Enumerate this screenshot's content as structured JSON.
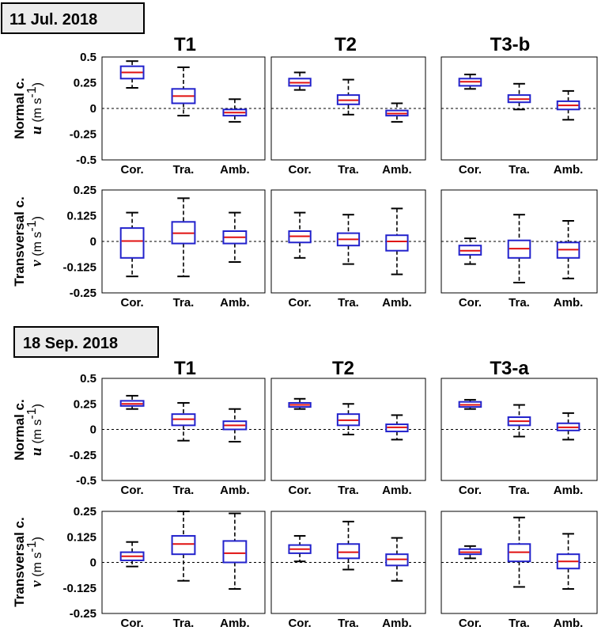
{
  "categories": [
    "Cor.",
    "Tra.",
    "Amb."
  ],
  "colors": {
    "box": "#2222cc",
    "median": "#e01010",
    "whisker": "#000000",
    "date_box": "#ececec"
  },
  "y_labels": {
    "normal": {
      "line1": "Normal c.",
      "var": "u",
      "unit": "(m s",
      "exp": "-1",
      "close": ")"
    },
    "transversal": {
      "line1": "Transversal c.",
      "var": "v",
      "unit": "(m s",
      "exp": "-1",
      "close": ")"
    }
  },
  "axes": {
    "normal": {
      "ylim": [
        -0.5,
        0.5
      ],
      "ticks": [
        "0.5",
        "0.25",
        "0",
        "-0.25",
        "-0.5"
      ]
    },
    "transversal": {
      "ylim": [
        -0.25,
        0.25
      ],
      "ticks": [
        "0.25",
        "0.125",
        "0",
        "-0.125",
        "-0.25"
      ]
    }
  },
  "chart_data": [
    {
      "type": "boxplot",
      "date": "11 Jul. 2018",
      "component": "normal",
      "panels": [
        {
          "title": "T1",
          "boxes": [
            {
              "cat": "Cor.",
              "min": 0.2,
              "q1": 0.29,
              "median": 0.35,
              "q3": 0.41,
              "max": 0.46
            },
            {
              "cat": "Tra.",
              "min": -0.07,
              "q1": 0.05,
              "median": 0.12,
              "q3": 0.19,
              "max": 0.4
            },
            {
              "cat": "Amb.",
              "min": -0.13,
              "q1": -0.07,
              "median": -0.04,
              "q3": -0.01,
              "max": 0.09
            }
          ]
        },
        {
          "title": "T2",
          "boxes": [
            {
              "cat": "Cor.",
              "min": 0.18,
              "q1": 0.22,
              "median": 0.25,
              "q3": 0.29,
              "max": 0.35
            },
            {
              "cat": "Tra.",
              "min": -0.06,
              "q1": 0.04,
              "median": 0.08,
              "q3": 0.13,
              "max": 0.28
            },
            {
              "cat": "Amb.",
              "min": -0.13,
              "q1": -0.07,
              "median": -0.05,
              "q3": -0.02,
              "max": 0.05
            }
          ]
        },
        {
          "title": "T3-b",
          "boxes": [
            {
              "cat": "Cor.",
              "min": 0.19,
              "q1": 0.22,
              "median": 0.26,
              "q3": 0.29,
              "max": 0.33
            },
            {
              "cat": "Tra.",
              "min": -0.01,
              "q1": 0.06,
              "median": 0.09,
              "q3": 0.13,
              "max": 0.24
            },
            {
              "cat": "Amb.",
              "min": -0.11,
              "q1": -0.01,
              "median": 0.03,
              "q3": 0.07,
              "max": 0.17
            }
          ]
        }
      ]
    },
    {
      "type": "boxplot",
      "date": "11 Jul. 2018",
      "component": "transversal",
      "panels": [
        {
          "title": "T1",
          "boxes": [
            {
              "cat": "Cor.",
              "min": -0.17,
              "q1": -0.08,
              "median": 0.002,
              "q3": 0.065,
              "max": 0.14
            },
            {
              "cat": "Tra.",
              "min": -0.17,
              "q1": -0.01,
              "median": 0.04,
              "q3": 0.095,
              "max": 0.21
            },
            {
              "cat": "Amb.",
              "min": -0.1,
              "q1": -0.01,
              "median": 0.02,
              "q3": 0.05,
              "max": 0.14
            }
          ]
        },
        {
          "title": "T2",
          "boxes": [
            {
              "cat": "Cor.",
              "min": -0.08,
              "q1": -0.005,
              "median": 0.025,
              "q3": 0.05,
              "max": 0.14
            },
            {
              "cat": "Tra.",
              "min": -0.11,
              "q1": -0.02,
              "median": 0.01,
              "q3": 0.04,
              "max": 0.13
            },
            {
              "cat": "Amb.",
              "min": -0.16,
              "q1": -0.045,
              "median": 0.0,
              "q3": 0.03,
              "max": 0.16
            }
          ]
        },
        {
          "title": "T3-b",
          "boxes": [
            {
              "cat": "Cor.",
              "min": -0.11,
              "q1": -0.065,
              "median": -0.045,
              "q3": -0.02,
              "max": 0.015
            },
            {
              "cat": "Tra.",
              "min": -0.2,
              "q1": -0.08,
              "median": -0.035,
              "q3": 0.005,
              "max": 0.13
            },
            {
              "cat": "Amb.",
              "min": -0.18,
              "q1": -0.08,
              "median": -0.04,
              "q3": -0.005,
              "max": 0.1
            }
          ]
        }
      ]
    },
    {
      "type": "boxplot",
      "date": "18 Sep. 2018",
      "component": "normal",
      "panels": [
        {
          "title": "T1",
          "boxes": [
            {
              "cat": "Cor.",
              "min": 0.2,
              "q1": 0.23,
              "median": 0.25,
              "q3": 0.28,
              "max": 0.33
            },
            {
              "cat": "Tra.",
              "min": -0.11,
              "q1": 0.04,
              "median": 0.1,
              "q3": 0.15,
              "max": 0.26
            },
            {
              "cat": "Amb.",
              "min": -0.12,
              "q1": 0.0,
              "median": 0.04,
              "q3": 0.08,
              "max": 0.2
            }
          ]
        },
        {
          "title": "T2",
          "boxes": [
            {
              "cat": "Cor.",
              "min": 0.2,
              "q1": 0.22,
              "median": 0.24,
              "q3": 0.26,
              "max": 0.3
            },
            {
              "cat": "Tra.",
              "min": -0.05,
              "q1": 0.04,
              "median": 0.09,
              "q3": 0.15,
              "max": 0.25
            },
            {
              "cat": "Amb.",
              "min": -0.1,
              "q1": -0.02,
              "median": 0.02,
              "q3": 0.05,
              "max": 0.14
            }
          ]
        },
        {
          "title": "T3-a",
          "boxes": [
            {
              "cat": "Cor.",
              "min": 0.2,
              "q1": 0.22,
              "median": 0.24,
              "q3": 0.27,
              "max": 0.29
            },
            {
              "cat": "Tra.",
              "min": -0.07,
              "q1": 0.04,
              "median": 0.08,
              "q3": 0.12,
              "max": 0.24
            },
            {
              "cat": "Amb.",
              "min": -0.1,
              "q1": -0.01,
              "median": 0.02,
              "q3": 0.06,
              "max": 0.16
            }
          ]
        }
      ]
    },
    {
      "type": "boxplot",
      "date": "18 Sep. 2018",
      "component": "transversal",
      "panels": [
        {
          "title": "T1",
          "boxes": [
            {
              "cat": "Cor.",
              "min": -0.02,
              "q1": 0.01,
              "median": 0.03,
              "q3": 0.05,
              "max": 0.1
            },
            {
              "cat": "Tra.",
              "min": -0.09,
              "q1": 0.04,
              "median": 0.09,
              "q3": 0.13,
              "max": 0.25
            },
            {
              "cat": "Amb.",
              "min": -0.13,
              "q1": 0.0,
              "median": 0.045,
              "q3": 0.105,
              "max": 0.24
            }
          ]
        },
        {
          "title": "T2",
          "boxes": [
            {
              "cat": "Cor.",
              "min": 0.005,
              "q1": 0.045,
              "median": 0.065,
              "q3": 0.085,
              "max": 0.13
            },
            {
              "cat": "Tra.",
              "min": -0.035,
              "q1": 0.02,
              "median": 0.05,
              "q3": 0.09,
              "max": 0.2
            },
            {
              "cat": "Amb.",
              "min": -0.09,
              "q1": -0.015,
              "median": 0.015,
              "q3": 0.04,
              "max": 0.12
            }
          ]
        },
        {
          "title": "T3-a",
          "boxes": [
            {
              "cat": "Cor.",
              "min": 0.02,
              "q1": 0.04,
              "median": 0.05,
              "q3": 0.065,
              "max": 0.08
            },
            {
              "cat": "Tra.",
              "min": -0.12,
              "q1": 0.005,
              "median": 0.05,
              "q3": 0.09,
              "max": 0.22
            },
            {
              "cat": "Amb.",
              "min": -0.13,
              "q1": -0.03,
              "median": 0.005,
              "q3": 0.04,
              "max": 0.14
            }
          ]
        }
      ]
    }
  ]
}
